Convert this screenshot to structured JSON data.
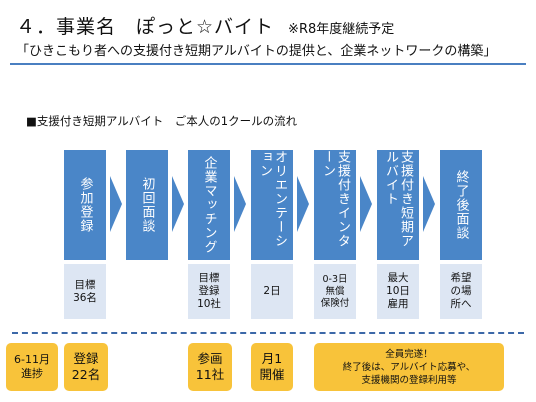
{
  "header": {
    "title": "４．事業名　ぽっと☆バイト",
    "title_note": "※R8年度継続予定",
    "subtitle": "「ひきこもり者への支援付き短期アルバイトの提供と、企業ネットワークの構築」"
  },
  "section_title": "■支援付き短期アルバイト　ご本人の1クールの流れ",
  "steps": [
    {
      "label": "参加登録",
      "detail": "目標\n36名"
    },
    {
      "label": "初回面談",
      "detail": ""
    },
    {
      "label": "企業マッチング",
      "detail": "目標\n登録\n10社"
    },
    {
      "label": "オリエンテーション",
      "detail": "2日"
    },
    {
      "label": "支援付きインターン",
      "detail": "0-3日\n無償\n保険付"
    },
    {
      "label": "支援付き短期アルバイト",
      "detail": "最大\n10日\n雇用"
    },
    {
      "label": "終了後面談",
      "detail": "希望\nの場\n所へ"
    }
  ],
  "progress": {
    "period_label": "6-11月\n進捗",
    "registered": "登録\n22名",
    "companies": "参画\n11社",
    "orientation": "月1\n開催",
    "summary": "全員完遂！\n終了後は、アルバイト応募や、\n支援機関の登録利用等"
  },
  "colors": {
    "step": "#4a86c8",
    "detail_bg": "#dde6f3",
    "progress_bg": "#f8c33a",
    "rule": "#4a7fc1"
  }
}
